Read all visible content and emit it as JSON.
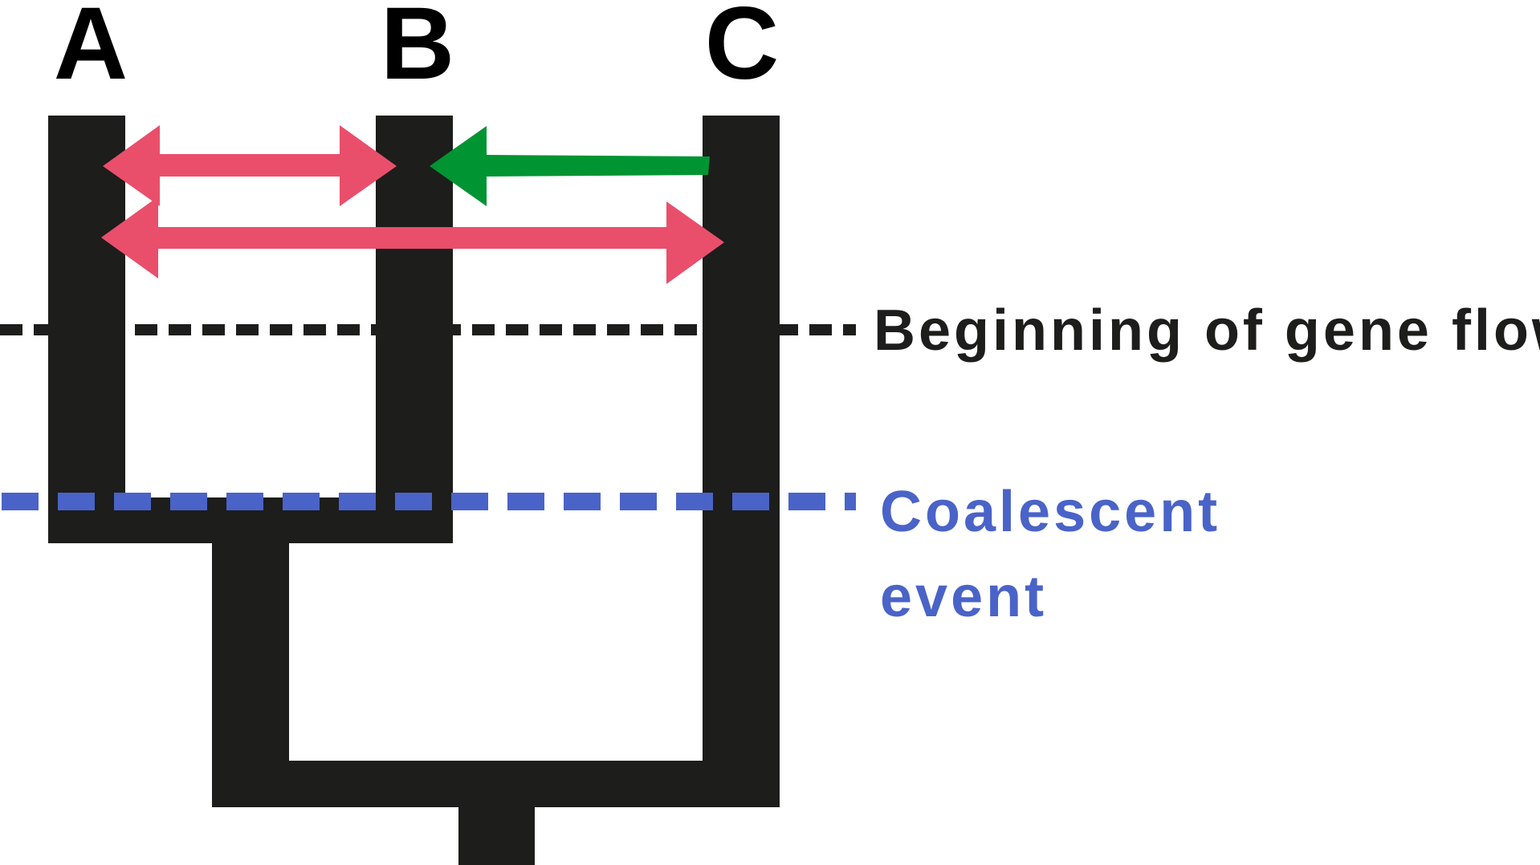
{
  "taxa": [
    {
      "label": "A"
    },
    {
      "label": "B"
    },
    {
      "label": "C"
    }
  ],
  "gene_flow_line": {
    "label": "Beginning of gene flow",
    "color": "#1d1d1b"
  },
  "coalescent_line": {
    "label_line1": "Coalescent",
    "label_line2": "event",
    "color": "#4a63c8"
  },
  "colors": {
    "tree": "#1d1d1b",
    "bidirectional_arrow": "#e94f6b",
    "unidirectional_arrow": "#009432"
  }
}
